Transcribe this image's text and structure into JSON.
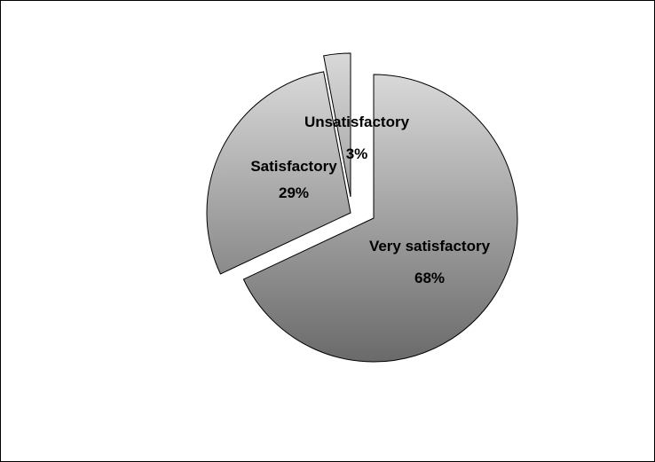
{
  "chart_data": {
    "type": "pie",
    "title": "",
    "slices": [
      {
        "label": "Very satisfactory",
        "percent_label": "68%",
        "value": 68
      },
      {
        "label": "Satisfactory",
        "percent_label": "29%",
        "value": 29
      },
      {
        "label": "Unsatisfactory",
        "percent_label": "3%",
        "value": 3
      }
    ],
    "exploded": true,
    "legend": "none",
    "fill_style": "gradient light-to-dark grey, top to bottom",
    "colors": {
      "gradient_top": "#d9d9d9",
      "gradient_bottom": "#6a6a6a",
      "outline": "#000000"
    }
  }
}
